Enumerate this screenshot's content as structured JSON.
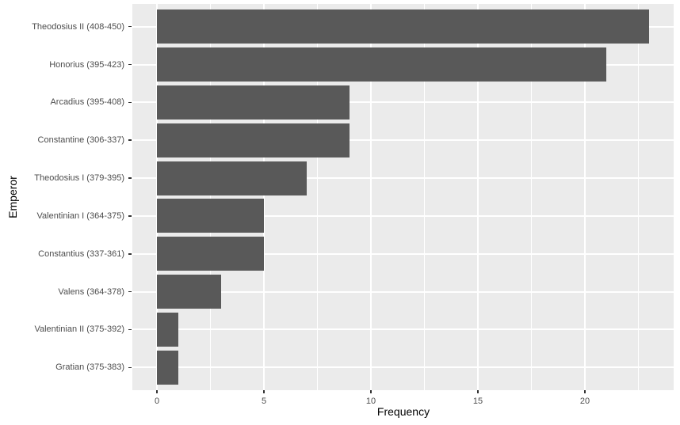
{
  "chart_data": {
    "type": "bar",
    "orientation": "horizontal",
    "title": "",
    "xlabel": "Frequency",
    "ylabel": "Emperor",
    "categories": [
      "Theodosius II (408-450)",
      "Honorius (395-423)",
      "Arcadius (395-408)",
      "Constantine (306-337)",
      "Theodosius I (379-395)",
      "Valentinian I (364-375)",
      "Constantius (337-361)",
      "Valens (364-378)",
      "Valentinian II (375-392)",
      "Gratian (375-383)"
    ],
    "values": [
      23,
      21,
      9,
      9,
      7,
      5,
      5,
      3,
      1,
      1
    ],
    "x_major_ticks": [
      0,
      5,
      10,
      15,
      20
    ],
    "x_minor_ticks": [
      2.5,
      7.5,
      12.5,
      17.5,
      22.5
    ],
    "xlim": [
      -1.15,
      24.15
    ],
    "bar_width_fraction": 0.9,
    "grid": "white major and minor vertical lines, white major horizontal lines",
    "legend_position": "none",
    "theme": "ggplot2-grey"
  },
  "colors": {
    "bar_fill": "#595959",
    "panel_background": "#EBEBEB",
    "gridline": "#FFFFFF",
    "axis_text": "#4D4D4D",
    "axis_title": "#000000",
    "tick_mark": "#333333",
    "figure_background": "#FFFFFF"
  }
}
